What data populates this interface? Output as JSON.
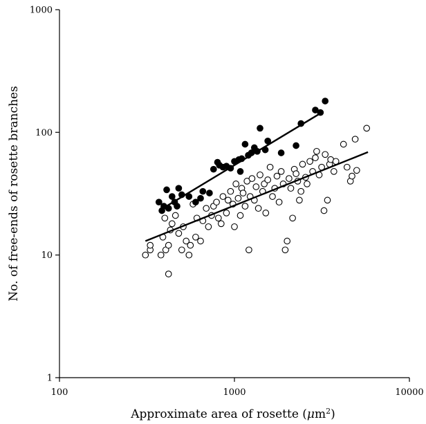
{
  "chart_data": {
    "type": "scatter",
    "x_scale": "log",
    "y_scale": "log",
    "xlim": [
      100,
      10000
    ],
    "ylim": [
      1,
      1000
    ],
    "x_ticks": [
      "100",
      "1000",
      "10000"
    ],
    "y_ticks": [
      "1000",
      "100",
      "10",
      "1"
    ],
    "xlabel": "Approximate area of rosette (μm²)",
    "xlabel_parts": {
      "prefix": "Approximate area of rosette (",
      "unit_mu": "μ",
      "unit_m": "m",
      "unit_exp": "2",
      "suffix": ")"
    },
    "ylabel": "No. of free-ends of rosette branches",
    "grid": false,
    "legend": "none",
    "series": [
      {
        "marker": "filled-circle",
        "color": "#000000",
        "points": [
          [
            370,
            27
          ],
          [
            385,
            23
          ],
          [
            395,
            25
          ],
          [
            410,
            34
          ],
          [
            420,
            24
          ],
          [
            440,
            30
          ],
          [
            455,
            27
          ],
          [
            470,
            25
          ],
          [
            480,
            35
          ],
          [
            500,
            31
          ],
          [
            550,
            30
          ],
          [
            600,
            27
          ],
          [
            640,
            29
          ],
          [
            660,
            33
          ],
          [
            720,
            32
          ],
          [
            760,
            50
          ],
          [
            800,
            57
          ],
          [
            820,
            54
          ],
          [
            860,
            52
          ],
          [
            900,
            53
          ],
          [
            950,
            51
          ],
          [
            1000,
            58
          ],
          [
            1060,
            60
          ],
          [
            1080,
            48
          ],
          [
            1100,
            61
          ],
          [
            1150,
            80
          ],
          [
            1200,
            65
          ],
          [
            1250,
            68
          ],
          [
            1300,
            75
          ],
          [
            1350,
            70
          ],
          [
            1400,
            108
          ],
          [
            1500,
            72
          ],
          [
            1550,
            85
          ],
          [
            1850,
            68
          ],
          [
            2250,
            78
          ],
          [
            2400,
            118
          ],
          [
            2900,
            152
          ],
          [
            3100,
            145
          ],
          [
            3300,
            180
          ]
        ],
        "trend_line": [
          [
            390,
            24
          ],
          [
            3100,
            143
          ]
        ]
      },
      {
        "marker": "open-circle",
        "color": "#000000",
        "points": [
          [
            310,
            10
          ],
          [
            330,
            11
          ],
          [
            330,
            12
          ],
          [
            380,
            10
          ],
          [
            390,
            14
          ],
          [
            400,
            20
          ],
          [
            405,
            11
          ],
          [
            420,
            7
          ],
          [
            420,
            12
          ],
          [
            430,
            16
          ],
          [
            440,
            18
          ],
          [
            460,
            21
          ],
          [
            480,
            15
          ],
          [
            500,
            11
          ],
          [
            510,
            17
          ],
          [
            530,
            13
          ],
          [
            550,
            10
          ],
          [
            560,
            12
          ],
          [
            580,
            26
          ],
          [
            600,
            14
          ],
          [
            610,
            20
          ],
          [
            640,
            13
          ],
          [
            660,
            19
          ],
          [
            690,
            24
          ],
          [
            710,
            17
          ],
          [
            740,
            21
          ],
          [
            760,
            25
          ],
          [
            790,
            27
          ],
          [
            810,
            20
          ],
          [
            840,
            18
          ],
          [
            860,
            30
          ],
          [
            900,
            22
          ],
          [
            920,
            28
          ],
          [
            950,
            33
          ],
          [
            980,
            26
          ],
          [
            1000,
            17
          ],
          [
            1020,
            38
          ],
          [
            1050,
            29
          ],
          [
            1080,
            21
          ],
          [
            1100,
            35
          ],
          [
            1120,
            32
          ],
          [
            1150,
            25
          ],
          [
            1180,
            40
          ],
          [
            1210,
            11
          ],
          [
            1230,
            30
          ],
          [
            1260,
            42
          ],
          [
            1300,
            28
          ],
          [
            1330,
            36
          ],
          [
            1370,
            24
          ],
          [
            1400,
            45
          ],
          [
            1450,
            33
          ],
          [
            1480,
            38
          ],
          [
            1510,
            22
          ],
          [
            1550,
            41
          ],
          [
            1600,
            52
          ],
          [
            1650,
            30
          ],
          [
            1700,
            35
          ],
          [
            1750,
            44
          ],
          [
            1800,
            27
          ],
          [
            1850,
            48
          ],
          [
            1900,
            38
          ],
          [
            1950,
            11
          ],
          [
            2000,
            13
          ],
          [
            2050,
            42
          ],
          [
            2100,
            35
          ],
          [
            2150,
            20
          ],
          [
            2200,
            50
          ],
          [
            2250,
            46
          ],
          [
            2300,
            40
          ],
          [
            2350,
            28
          ],
          [
            2400,
            33
          ],
          [
            2450,
            55
          ],
          [
            2550,
            43
          ],
          [
            2600,
            38
          ],
          [
            2700,
            58
          ],
          [
            2800,
            48
          ],
          [
            2900,
            62
          ],
          [
            2950,
            70
          ],
          [
            3050,
            45
          ],
          [
            3150,
            52
          ],
          [
            3250,
            23
          ],
          [
            3300,
            66
          ],
          [
            3400,
            28
          ],
          [
            3500,
            55
          ],
          [
            3550,
            60
          ],
          [
            3700,
            48
          ],
          [
            3800,
            58
          ],
          [
            4200,
            80
          ],
          [
            4400,
            52
          ],
          [
            4600,
            40
          ],
          [
            4700,
            44
          ],
          [
            4900,
            88
          ],
          [
            5000,
            49
          ],
          [
            5700,
            108
          ]
        ],
        "trend_line": [
          [
            310,
            13
          ],
          [
            5800,
            69
          ]
        ]
      }
    ]
  }
}
